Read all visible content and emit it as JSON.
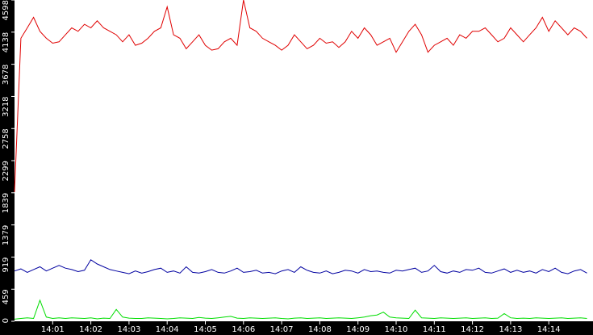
{
  "chart_data": {
    "type": "line",
    "categories": [
      null,
      null,
      null,
      null,
      null,
      null,
      "14:01",
      null,
      null,
      null,
      null,
      null,
      "14:02",
      null,
      null,
      null,
      null,
      null,
      "14:03",
      null,
      null,
      null,
      null,
      null,
      "14:04",
      null,
      null,
      null,
      null,
      null,
      "14:05",
      null,
      null,
      null,
      null,
      null,
      "14:06",
      null,
      null,
      null,
      null,
      null,
      "14:07",
      null,
      null,
      null,
      null,
      null,
      "14:08",
      null,
      null,
      null,
      null,
      null,
      "14:09",
      null,
      null,
      null,
      null,
      null,
      "14:10",
      null,
      null,
      null,
      null,
      null,
      "14:11",
      null,
      null,
      null,
      null,
      null,
      "14:12",
      null,
      null,
      null,
      null,
      null,
      "14:13",
      null,
      null,
      null,
      null,
      null,
      "14:14",
      null,
      null,
      null,
      null,
      null,
      null
    ],
    "series": [
      {
        "color": "#e00000",
        "values": [
          1850,
          4050,
          4200,
          4350,
          4150,
          4050,
          3980,
          4000,
          4100,
          4200,
          4150,
          4250,
          4200,
          4300,
          4200,
          4150,
          4100,
          4000,
          4100,
          3950,
          3980,
          4050,
          4150,
          4200,
          4500,
          4100,
          4050,
          3900,
          4000,
          4100,
          3950,
          3880,
          3900,
          4000,
          4050,
          3950,
          4598,
          4200,
          4150,
          4050,
          4000,
          3950,
          3880,
          3950,
          4100,
          4000,
          3900,
          3950,
          4050,
          3980,
          4000,
          3920,
          4000,
          4150,
          4050,
          4200,
          4100,
          3950,
          4000,
          4050,
          3850,
          4000,
          4150,
          4250,
          4100,
          3850,
          3950,
          4000,
          4050,
          3950,
          4100,
          4050,
          4150,
          4150,
          4200,
          4100,
          4000,
          4050,
          4200,
          4100,
          4000,
          4100,
          4200,
          4350,
          4150,
          4300,
          4200,
          4100,
          4200,
          4150,
          4050
        ]
      },
      {
        "color": "#0000a0",
        "values": [
          720,
          750,
          700,
          740,
          780,
          720,
          760,
          800,
          760,
          740,
          710,
          730,
          880,
          820,
          780,
          740,
          720,
          700,
          680,
          720,
          690,
          710,
          740,
          760,
          700,
          720,
          690,
          780,
          700,
          690,
          710,
          740,
          700,
          690,
          720,
          760,
          700,
          710,
          730,
          690,
          700,
          680,
          720,
          740,
          700,
          780,
          730,
          700,
          690,
          720,
          680,
          700,
          730,
          720,
          690,
          740,
          710,
          720,
          700,
          690,
          730,
          720,
          740,
          760,
          700,
          720,
          800,
          710,
          690,
          720,
          700,
          740,
          730,
          760,
          700,
          690,
          720,
          750,
          700,
          730,
          700,
          720,
          690,
          740,
          710,
          760,
          700,
          680,
          720,
          740,
          690
        ]
      },
      {
        "color": "#00dd00",
        "values": [
          30,
          40,
          50,
          40,
          300,
          60,
          40,
          50,
          40,
          50,
          45,
          40,
          50,
          35,
          45,
          40,
          170,
          60,
          45,
          40,
          40,
          50,
          45,
          40,
          35,
          40,
          50,
          45,
          40,
          55,
          45,
          40,
          50,
          60,
          70,
          45,
          40,
          50,
          45,
          40,
          45,
          50,
          40,
          35,
          45,
          50,
          40,
          45,
          50,
          40,
          45,
          50,
          45,
          40,
          50,
          60,
          80,
          90,
          130,
          60,
          50,
          45,
          40,
          160,
          50,
          45,
          40,
          50,
          45,
          40,
          45,
          50,
          40,
          45,
          50,
          40,
          45,
          110,
          50,
          40,
          45,
          40,
          50,
          45,
          40,
          45,
          50,
          40,
          45,
          50,
          40
        ]
      }
    ],
    "ylim": [
      0,
      4598
    ],
    "yticks": [
      0,
      459,
      919,
      1379,
      1839,
      2299,
      2758,
      3218,
      3678,
      4138,
      4598
    ]
  }
}
